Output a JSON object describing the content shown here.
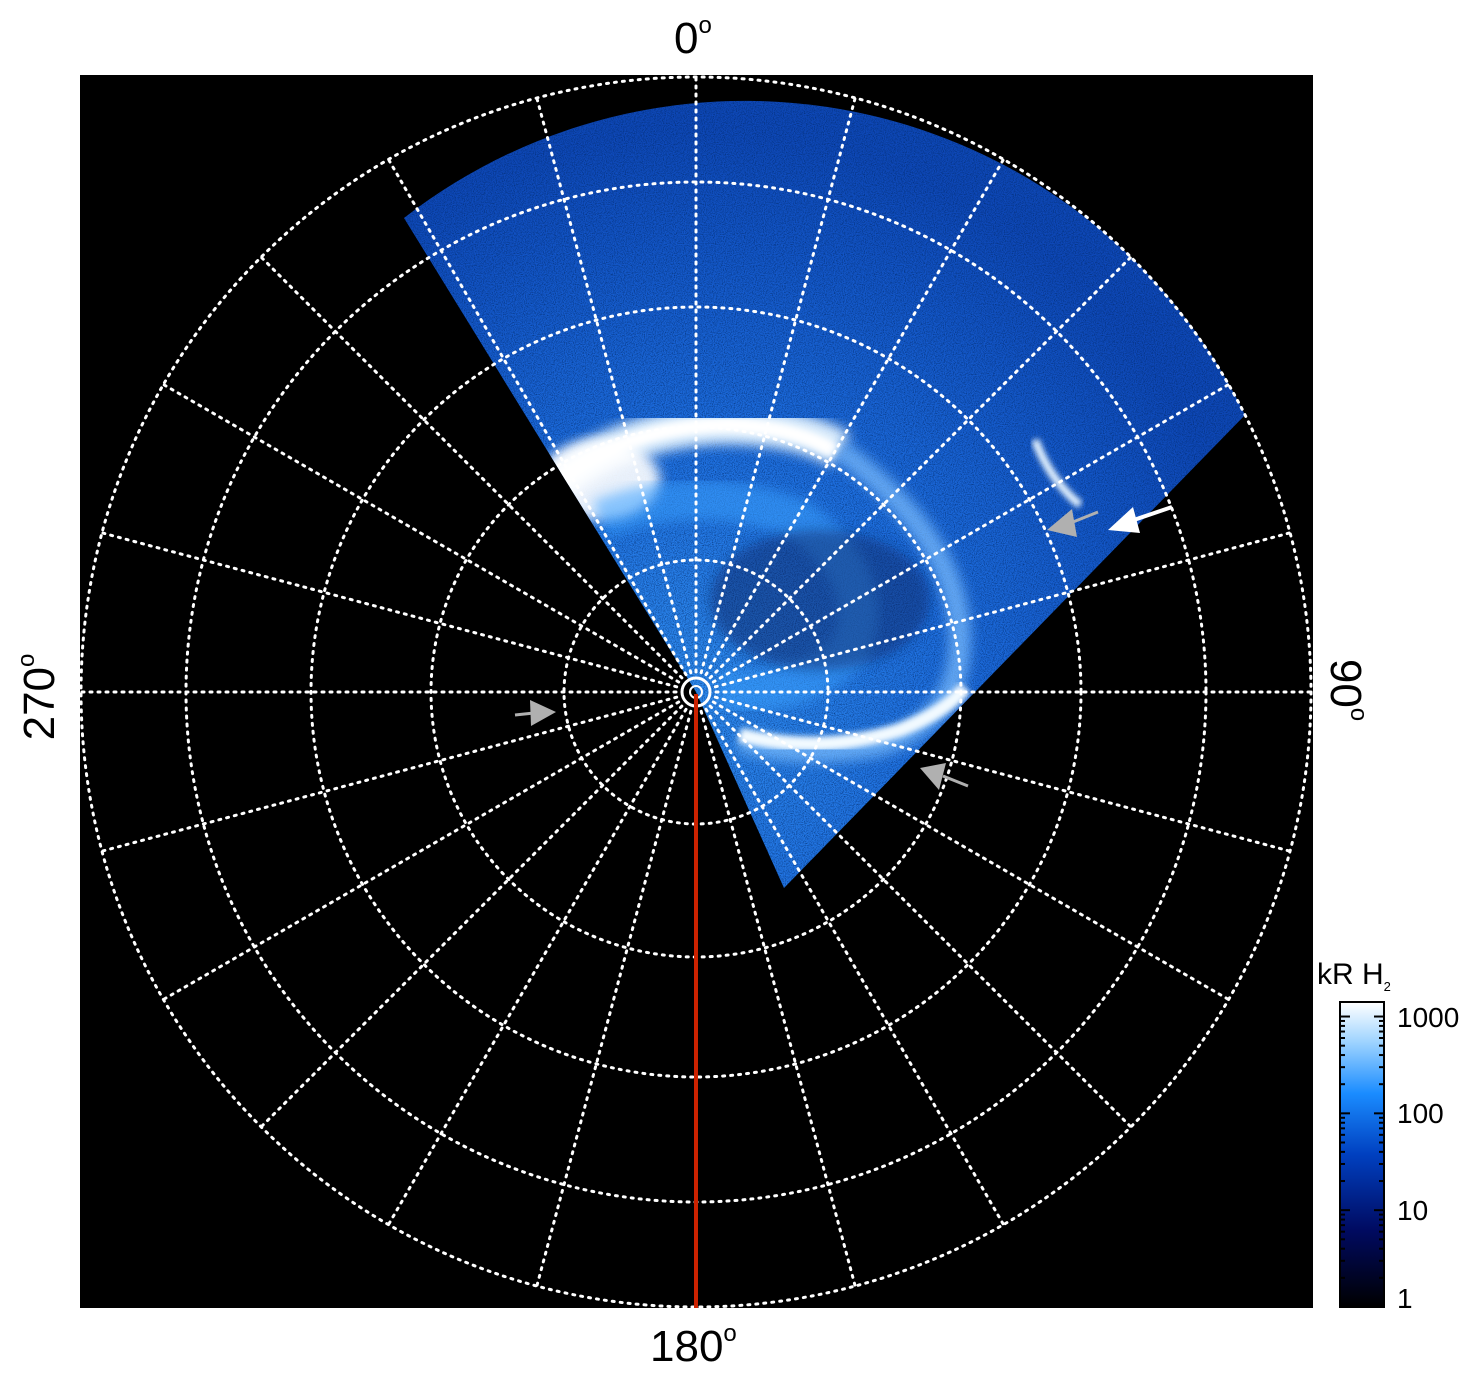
{
  "figure": {
    "axis_labels": {
      "top": "0",
      "right": "90",
      "bottom": "180",
      "left": "270",
      "degree_symbol": "o"
    },
    "colorbar": {
      "title": "kR H",
      "title_subscript": "2",
      "ticks": [
        "1000",
        "100",
        "10",
        "1"
      ],
      "colors": [
        "#000000",
        "#000a60",
        "#0040c0",
        "#1a8cff",
        "#9fd4ff",
        "#ffffff"
      ]
    },
    "colors": {
      "background": "#000000",
      "grid": "#ffffff",
      "meridian_line": "#cc2200",
      "arrow_white": "#ffffff",
      "arrow_gray": "#b0b0b0"
    },
    "annotations": {
      "arrows": [
        {
          "color": "white",
          "pointing": "lower-left"
        },
        {
          "color": "gray",
          "pointing": "lower-left"
        },
        {
          "color": "gray",
          "pointing": "right"
        },
        {
          "color": "gray",
          "pointing": "upper-left"
        }
      ]
    }
  }
}
